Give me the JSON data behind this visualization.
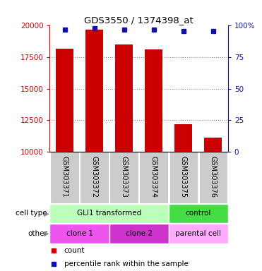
{
  "title": "GDS3550 / 1374398_at",
  "samples": [
    "GSM303371",
    "GSM303372",
    "GSM303373",
    "GSM303374",
    "GSM303375",
    "GSM303376"
  ],
  "counts": [
    18200,
    19700,
    18500,
    18100,
    12200,
    11100
  ],
  "percentile_ranks": [
    97,
    98,
    97,
    97,
    96,
    96
  ],
  "y_min": 10000,
  "y_max": 20000,
  "y_ticks": [
    10000,
    12500,
    15000,
    17500,
    20000
  ],
  "right_y_ticks": [
    0,
    25,
    50,
    75,
    100
  ],
  "bar_color": "#cc0000",
  "dot_color": "#1111aa",
  "bar_width": 0.6,
  "cell_type_labels": [
    {
      "label": "GLI1 transformed",
      "start": 0,
      "end": 4,
      "color": "#bbffbb"
    },
    {
      "label": "control",
      "start": 4,
      "end": 6,
      "color": "#44dd44"
    }
  ],
  "other_labels": [
    {
      "label": "clone 1",
      "start": 0,
      "end": 2,
      "color": "#ee55ee"
    },
    {
      "label": "clone 2",
      "start": 2,
      "end": 4,
      "color": "#cc33cc"
    },
    {
      "label": "parental cell",
      "start": 4,
      "end": 6,
      "color": "#ffaaff"
    }
  ],
  "left_label": "cell type",
  "other_left_label": "other",
  "legend_count_label": "count",
  "legend_percentile_label": "percentile rank within the sample",
  "left_axis_color": "#cc0000",
  "right_axis_color": "#1111aa",
  "grid_color": "#888888",
  "tick_area_bg": "#cccccc"
}
